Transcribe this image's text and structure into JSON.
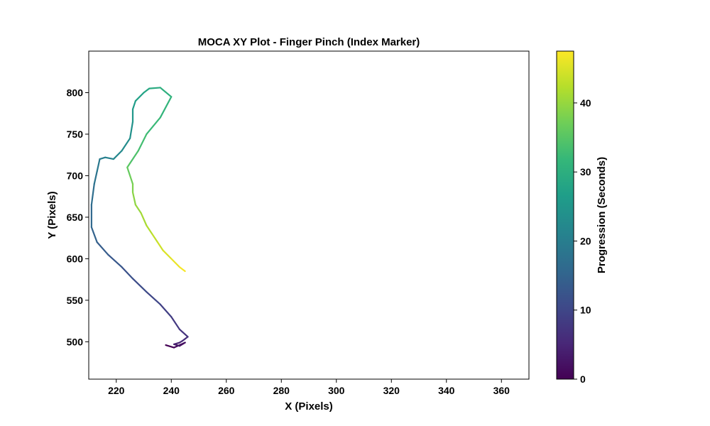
{
  "chart_data": {
    "type": "line",
    "title": "MOCA XY Plot - Finger Pinch (Index Marker)",
    "xlabel": "X (Pixels)",
    "ylabel": "Y (Pixels)",
    "xlim": [
      210,
      370
    ],
    "ylim": [
      455,
      850
    ],
    "xticks": [
      220,
      240,
      260,
      280,
      300,
      320,
      340,
      360
    ],
    "yticks": [
      500,
      550,
      600,
      650,
      700,
      750,
      800
    ],
    "grid": false,
    "colorbar": {
      "label": "Progression (Seconds)",
      "range": [
        0,
        47.5
      ],
      "ticks": [
        0,
        10,
        20,
        30,
        40
      ],
      "colormap": "viridis"
    },
    "series": [
      {
        "x": [
          238,
          241,
          245,
          243,
          241,
          243,
          244,
          246,
          243,
          240,
          236,
          231,
          226,
          222,
          217,
          213,
          211,
          211,
          212,
          213,
          214,
          216,
          219,
          222,
          225,
          226,
          226,
          227,
          230,
          232,
          236,
          240,
          236,
          231,
          228,
          225,
          224,
          225,
          226,
          226,
          227,
          229,
          231,
          233,
          235,
          237,
          240,
          243,
          245
        ],
        "t": [
          0,
          1,
          2,
          3,
          4,
          5,
          6,
          7,
          8,
          9,
          10,
          11,
          12,
          13,
          14,
          15,
          16,
          17,
          18,
          19,
          20,
          21,
          22,
          23,
          24,
          25,
          26,
          27,
          28,
          29,
          30,
          31,
          32,
          33,
          34,
          35,
          36,
          37,
          38,
          39,
          40,
          41,
          42,
          43,
          44,
          45,
          46,
          47,
          47.5
        ],
        "y": [
          496,
          493,
          499,
          495,
          497,
          499,
          501,
          506,
          515,
          530,
          545,
          560,
          576,
          590,
          605,
          620,
          638,
          665,
          690,
          705,
          720,
          722,
          720,
          730,
          745,
          765,
          780,
          790,
          800,
          805,
          806,
          795,
          770,
          750,
          730,
          715,
          710,
          700,
          690,
          680,
          665,
          655,
          640,
          630,
          620,
          610,
          600,
          590,
          585
        ]
      }
    ]
  }
}
